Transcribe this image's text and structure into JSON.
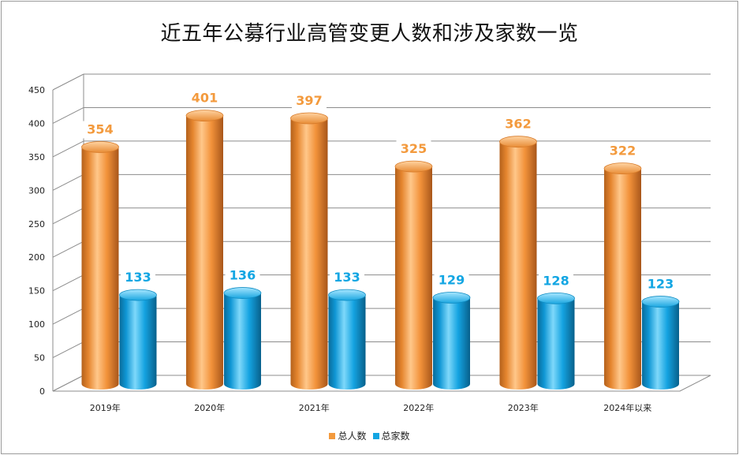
{
  "chart_data": {
    "type": "bar",
    "title": "近五年公募行业高管变更人数和涉及家数一览",
    "categories": [
      "2019年",
      "2020年",
      "2021年",
      "2022年",
      "2023年",
      "2024年以来"
    ],
    "series": [
      {
        "name": "总人数",
        "values": [
          354,
          401,
          397,
          325,
          362,
          322
        ],
        "color": "#F39A3D"
      },
      {
        "name": "总家数",
        "values": [
          133,
          136,
          133,
          129,
          128,
          123
        ],
        "color": "#13A6E3"
      }
    ],
    "ylim": [
      0,
      450
    ],
    "yticks": [
      "0",
      "50",
      "100",
      "150",
      "200",
      "250",
      "300",
      "350",
      "400",
      "450"
    ],
    "grid": true,
    "legend": "bottom",
    "style": "3d-cylinder"
  }
}
